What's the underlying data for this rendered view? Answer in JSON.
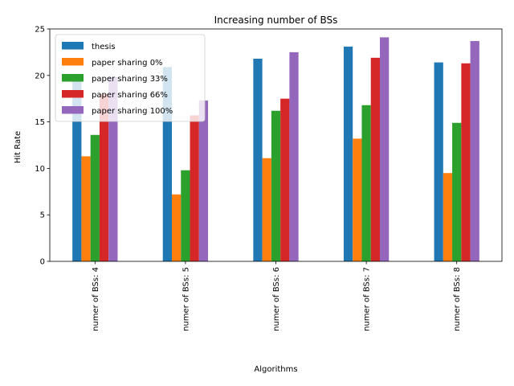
{
  "chart_data": {
    "type": "bar",
    "title": "Increasing number of BSs",
    "xlabel": "Algorithms",
    "ylabel": "Hit Rate",
    "ylim": [
      0,
      25
    ],
    "yticks": [
      0,
      5,
      10,
      15,
      20,
      25
    ],
    "grid": false,
    "legend_position": "top-left",
    "categories": [
      "numer of BSs: 4",
      "numer of BSs: 5",
      "numer of BSs: 6",
      "numer of BSs: 7",
      "numer of BSs: 8"
    ],
    "series": [
      {
        "name": "thesis",
        "color": "#1f77b4",
        "values": [
          19.6,
          20.9,
          21.8,
          23.1,
          21.4
        ]
      },
      {
        "name": "paper sharing 0%",
        "color": "#ff7f0e",
        "values": [
          11.3,
          7.2,
          11.1,
          13.2,
          9.5
        ]
      },
      {
        "name": "paper sharing 33%",
        "color": "#2ca02c",
        "values": [
          13.6,
          9.8,
          16.2,
          16.8,
          14.9
        ]
      },
      {
        "name": "paper sharing 66%",
        "color": "#d62728",
        "values": [
          18.0,
          15.7,
          17.5,
          21.9,
          21.3
        ]
      },
      {
        "name": "paper sharing 100%",
        "color": "#9467bd",
        "values": [
          19.8,
          17.3,
          22.5,
          24.1,
          23.7
        ]
      }
    ]
  }
}
